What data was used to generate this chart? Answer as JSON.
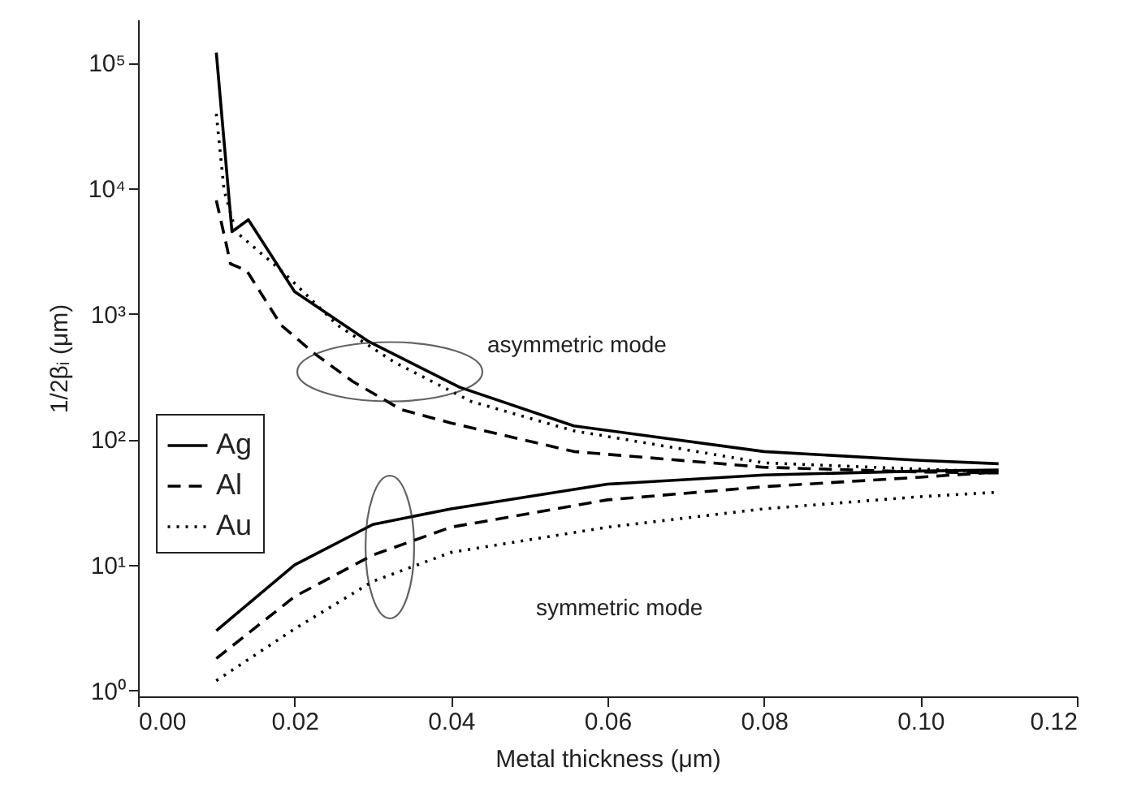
{
  "chart_data": {
    "type": "line",
    "xlabel": "Metal thickness (μm)",
    "ylabel": "1/2βᵢ (μm)",
    "log": "y",
    "grid": false,
    "legend": "left",
    "marker": "none",
    "xlim": [
      0,
      0.12
    ],
    "xticks": [
      {
        "value": 0,
        "label": "0.00"
      },
      {
        "value": 0.02,
        "label": "0.02"
      },
      {
        "value": 0.04,
        "label": "0.04"
      },
      {
        "value": 0.06,
        "label": "0.06"
      },
      {
        "value": 0.08,
        "label": "0.08"
      },
      {
        "value": 0.1,
        "label": "0.10"
      },
      {
        "value": 0.12,
        "label": "0.12"
      }
    ],
    "ylim": [
      0.9,
      220000
    ],
    "yticks": [
      {
        "value": 1,
        "label": "10⁰"
      },
      {
        "value": 10,
        "label": "10¹"
      },
      {
        "value": 100,
        "label": "10²"
      },
      {
        "value": 1000,
        "label": "10³"
      },
      {
        "value": 10000,
        "label": "10⁴"
      },
      {
        "value": 100000,
        "label": "10⁵"
      }
    ],
    "series": [
      {
        "name": "Ag",
        "color": "#000000",
        "line_style": "solid",
        "x": [
          0.01,
          0.012,
          0.0141,
          0.02,
          0.0295,
          0.0411,
          0.0557,
          0.08,
          0.1,
          0.11
        ],
        "values": [
          120000,
          4500,
          5600,
          1500,
          600,
          260,
          128,
          80,
          68,
          64
        ]
      },
      {
        "name": "Al",
        "color": "#000000",
        "line_style": "dashed",
        "x": [
          0.01,
          0.0114,
          0.0118,
          0.0139,
          0.0183,
          0.0224,
          0.0274,
          0.0336,
          0.04,
          0.0557,
          0.08,
          0.1,
          0.11
        ],
        "values": [
          8000,
          3300,
          2500,
          2200,
          810,
          490,
          290,
          173,
          135,
          80,
          60,
          55,
          54
        ]
      },
      {
        "name": "Au",
        "color": "#000000",
        "line_style": "dotted",
        "x": [
          0.01,
          0.011,
          0.0125,
          0.0187,
          0.0255,
          0.0328,
          0.0426,
          0.0557,
          0.08,
          0.1,
          0.11
        ],
        "values": [
          39000,
          9600,
          4500,
          2100,
          810,
          410,
          200,
          117,
          65,
          58,
          55
        ]
      },
      {
        "color": "#000000",
        "line_style": "solid",
        "x": [
          0.01,
          0.02,
          0.03,
          0.04,
          0.06,
          0.08,
          0.1,
          0.11
        ],
        "values": [
          3.0,
          10,
          21,
          28,
          44,
          52,
          56,
          57
        ]
      },
      {
        "color": "#000000",
        "line_style": "dashed",
        "x": [
          0.01,
          0.02,
          0.03,
          0.04,
          0.06,
          0.08,
          0.1,
          0.11
        ],
        "values": [
          1.8,
          5.6,
          12,
          20,
          33,
          42,
          50,
          55
        ]
      },
      {
        "color": "#000000",
        "line_style": "dotted",
        "x": [
          0.01,
          0.02,
          0.03,
          0.04,
          0.06,
          0.08,
          0.1,
          0.11
        ],
        "values": [
          1.2,
          3.1,
          7.4,
          12.6,
          20,
          28,
          35,
          38
        ]
      }
    ],
    "annotations": [
      "asymmetric mode",
      "symmetric mode"
    ]
  }
}
